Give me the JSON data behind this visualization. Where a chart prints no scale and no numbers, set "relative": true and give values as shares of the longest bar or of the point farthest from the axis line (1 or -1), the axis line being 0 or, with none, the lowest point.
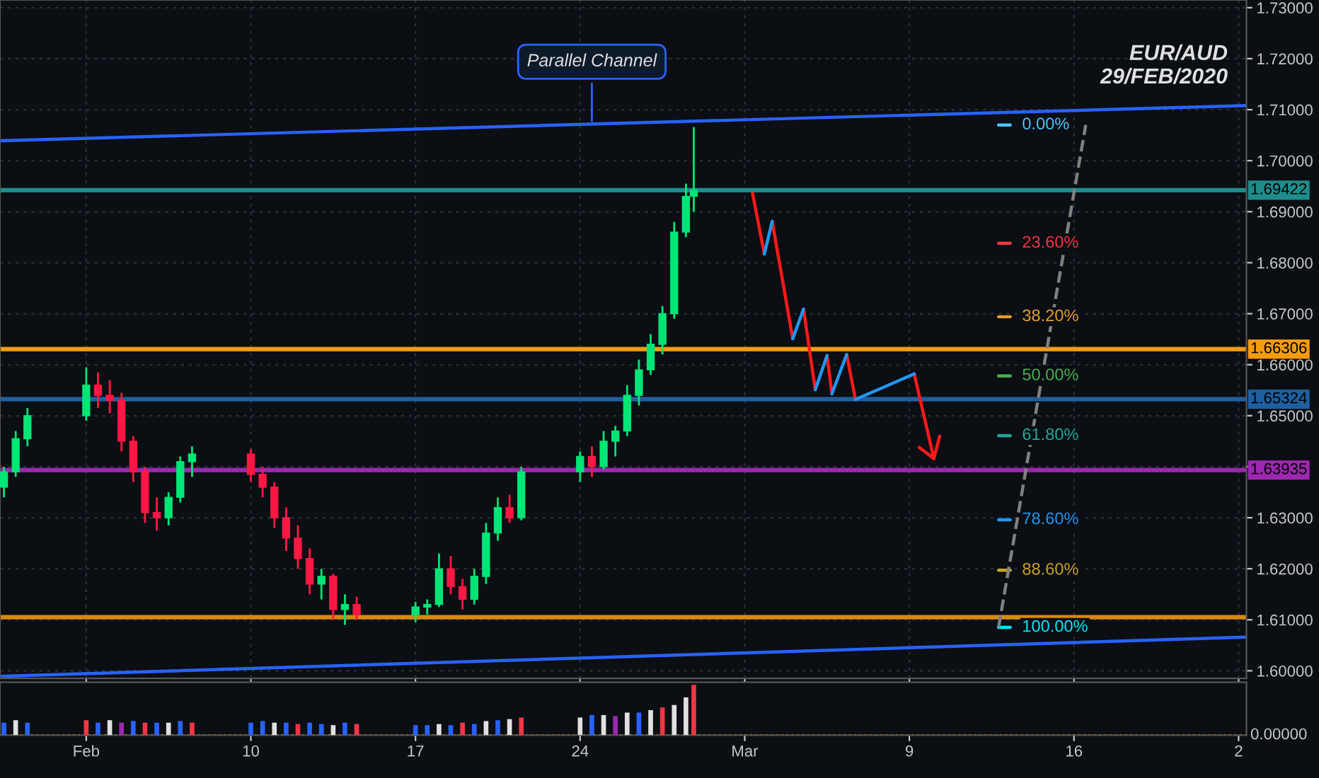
{
  "chart_data": [
    {
      "type": "candlestick",
      "title": "EUR/AUD",
      "subtitle": "29/FEB/2020",
      "x": [
        "2020-01-30T12:00",
        "2020-01-31T00:00",
        "2020-01-31T12:00",
        "2020-02-03T00:00",
        "2020-02-03T12:00",
        "2020-02-04T00:00",
        "2020-02-04T12:00",
        "2020-02-05T00:00",
        "2020-02-05T12:00",
        "2020-02-06T00:00",
        "2020-02-06T12:00",
        "2020-02-07T00:00",
        "2020-02-07T12:00",
        "2020-02-10T00:00",
        "2020-02-10T12:00",
        "2020-02-11T00:00",
        "2020-02-11T12:00",
        "2020-02-12T00:00",
        "2020-02-12T12:00",
        "2020-02-13T00:00",
        "2020-02-13T12:00",
        "2020-02-14T00:00",
        "2020-02-14T12:00",
        "2020-02-17T00:00",
        "2020-02-17T12:00",
        "2020-02-18T00:00",
        "2020-02-18T12:00",
        "2020-02-19T00:00",
        "2020-02-19T12:00",
        "2020-02-20T00:00",
        "2020-02-20T12:00",
        "2020-02-21T00:00",
        "2020-02-21T12:00",
        "2020-02-24T00:00",
        "2020-02-24T12:00",
        "2020-02-25T00:00",
        "2020-02-25T12:00",
        "2020-02-26T00:00",
        "2020-02-26T12:00",
        "2020-02-27T00:00",
        "2020-02-27T12:00",
        "2020-02-28T00:00",
        "2020-02-28T12:00",
        "2020-02-28T20:00"
      ],
      "ohlc": [
        [
          1.636,
          1.64,
          1.634,
          1.639
        ],
        [
          1.639,
          1.647,
          1.638,
          1.6455
        ],
        [
          1.6455,
          1.6515,
          1.644,
          1.65
        ],
        [
          1.65,
          1.6595,
          1.649,
          1.656
        ],
        [
          1.656,
          1.6585,
          1.6515,
          1.654
        ],
        [
          1.654,
          1.657,
          1.6505,
          1.653
        ],
        [
          1.653,
          1.6545,
          1.643,
          1.645
        ],
        [
          1.645,
          1.646,
          1.637,
          1.639
        ],
        [
          1.639,
          1.64,
          1.629,
          1.631
        ],
        [
          1.631,
          1.634,
          1.6275,
          1.63
        ],
        [
          1.63,
          1.635,
          1.6285,
          1.634
        ],
        [
          1.634,
          1.642,
          1.633,
          1.641
        ],
        [
          1.641,
          1.644,
          1.638,
          1.6425
        ],
        [
          1.6425,
          1.6435,
          1.637,
          1.6385
        ],
        [
          1.6385,
          1.64,
          1.634,
          1.636
        ],
        [
          1.636,
          1.637,
          1.628,
          1.63
        ],
        [
          1.63,
          1.632,
          1.6235,
          1.626
        ],
        [
          1.626,
          1.6285,
          1.62,
          1.622
        ],
        [
          1.622,
          1.624,
          1.615,
          1.617
        ],
        [
          1.617,
          1.62,
          1.614,
          1.6185
        ],
        [
          1.6185,
          1.619,
          1.61,
          1.612
        ],
        [
          1.612,
          1.615,
          1.609,
          1.613
        ],
        [
          1.613,
          1.6145,
          1.61,
          1.611
        ],
        [
          1.611,
          1.6135,
          1.6095,
          1.6125
        ],
        [
          1.6125,
          1.614,
          1.611,
          1.613
        ],
        [
          1.613,
          1.623,
          1.6125,
          1.62
        ],
        [
          1.62,
          1.6225,
          1.615,
          1.6165
        ],
        [
          1.6165,
          1.618,
          1.612,
          1.614
        ],
        [
          1.614,
          1.62,
          1.613,
          1.6185
        ],
        [
          1.6185,
          1.629,
          1.617,
          1.627
        ],
        [
          1.627,
          1.634,
          1.6255,
          1.632
        ],
        [
          1.632,
          1.6345,
          1.629,
          1.63
        ],
        [
          1.63,
          1.64,
          1.6295,
          1.639
        ],
        [
          1.639,
          1.643,
          1.637,
          1.642
        ],
        [
          1.642,
          1.644,
          1.638,
          1.64
        ],
        [
          1.64,
          1.647,
          1.6395,
          1.645
        ],
        [
          1.645,
          1.648,
          1.642,
          1.647
        ],
        [
          1.647,
          1.656,
          1.646,
          1.654
        ],
        [
          1.654,
          1.661,
          1.652,
          1.659
        ],
        [
          1.659,
          1.666,
          1.658,
          1.664
        ],
        [
          1.664,
          1.6715,
          1.662,
          1.67
        ],
        [
          1.67,
          1.688,
          1.669,
          1.686
        ],
        [
          1.686,
          1.6955,
          1.685,
          1.693
        ],
        [
          1.693,
          1.7066,
          1.69,
          1.6942
        ]
      ],
      "colors": [
        "#00e676",
        "#00e676",
        "#00e676",
        "#00e676",
        "#ff1744",
        "#ff1744",
        "#ff1744",
        "#ff1744",
        "#ff1744",
        "#ff1744",
        "#00e676",
        "#00e676",
        "#00e676",
        "#ff1744",
        "#ff1744",
        "#ff1744",
        "#ff1744",
        "#ff1744",
        "#ff1744",
        "#00e676",
        "#ff1744",
        "#00e676",
        "#ff1744",
        "#00e676",
        "#00e676",
        "#00e676",
        "#ff1744",
        "#ff1744",
        "#00e676",
        "#00e676",
        "#00e676",
        "#ff1744",
        "#00e676",
        "#00e676",
        "#ff1744",
        "#00e676",
        "#00e676",
        "#00e676",
        "#00e676",
        "#00e676",
        "#00e676",
        "#00e676",
        "#00e676",
        "#00e676"
      ],
      "series": [
        {
          "type": "line",
          "color": "#2962ff",
          "x": [
            "2020-01-30T08:00",
            "2020-03-23T08:00"
          ],
          "values": [
            1.7039,
            1.7108
          ]
        },
        {
          "type": "line",
          "color": "#2962ff",
          "x": [
            "2020-01-30T08:00",
            "2020-03-23T08:00"
          ],
          "values": [
            1.5989,
            1.6066
          ]
        },
        {
          "type": "line",
          "name": "0.00%",
          "color": "#4fc3f7",
          "x": [
            "2020-03-12T19:00",
            "2020-03-13T07:00"
          ],
          "values": [
            1.707,
            1.707
          ]
        },
        {
          "type": "line",
          "name": "23.60%",
          "color": "#f23645",
          "x": [
            "2020-03-12T19:00",
            "2020-03-13T07:00"
          ],
          "values": [
            1.6838,
            1.6838
          ]
        },
        {
          "type": "line",
          "name": "38.20%",
          "color": "#e0a030",
          "x": [
            "2020-03-12T19:00",
            "2020-03-13T07:00"
          ],
          "values": [
            1.6694,
            1.6694
          ]
        },
        {
          "type": "line",
          "name": "50.00%",
          "color": "#4caf50",
          "x": [
            "2020-03-12T19:00",
            "2020-03-13T07:00"
          ],
          "values": [
            1.6578,
            1.6578
          ]
        },
        {
          "type": "line",
          "name": "61.80%",
          "color": "#26a69a",
          "x": [
            "2020-03-12T19:00",
            "2020-03-13T07:00"
          ],
          "values": [
            1.6461,
            1.6461
          ]
        },
        {
          "type": "line",
          "name": "78.60%",
          "color": "#2196f3",
          "x": [
            "2020-03-12T19:00",
            "2020-03-13T07:00"
          ],
          "values": [
            1.6296,
            1.6296
          ]
        },
        {
          "type": "line",
          "name": "88.60%",
          "color": "#c9a227",
          "x": [
            "2020-03-12T19:00",
            "2020-03-13T07:00"
          ],
          "values": [
            1.6197,
            1.6197
          ]
        },
        {
          "type": "line",
          "name": "100.00%",
          "color": "#00e5ff",
          "x": [
            "2020-03-12T19:00",
            "2020-03-13T07:00"
          ],
          "values": [
            1.6085,
            1.6085
          ]
        },
        {
          "type": "line",
          "color": "#808080",
          "line_style": "dashed",
          "x": [
            "2020-03-12T19:00",
            "2020-03-16T12:00"
          ],
          "values": [
            1.6085,
            1.707
          ]
        },
        {
          "type": "line",
          "color": "#ff1a1a",
          "x": [
            "2020-03-02T08:00",
            "2020-03-02T20:00",
            "2020-03-02T23:00",
            "2020-03-03T04:00",
            "2020-03-04T01:00",
            "2020-03-04T05:00",
            "2020-03-04T12:00",
            "2020-03-05T00:00",
            "2020-03-05T05:00",
            "2020-03-05T12:00",
            "2020-03-05T17:00",
            "2020-03-06T00:00",
            "2020-03-06T08:00",
            "2020-03-06T17:00",
            "2020-03-06T22:00",
            "2020-03-09T05:00",
            "2020-03-10T01:00"
          ],
          "values": [
            1.6936,
            1.6817,
            null,
            1.6881,
            1.6651,
            null,
            1.6709,
            1.6551,
            null,
            1.6618,
            1.6543,
            null,
            1.662,
            1.6532,
            null,
            1.6582,
            1.6416
          ]
        },
        {
          "type": "line",
          "color": "#2196f3",
          "x": [
            "2020-03-02T20:00",
            "2020-03-03T04:00",
            "2020-03-03T12:00",
            "2020-03-04T01:00",
            "2020-03-04T12:00",
            "2020-03-04T19:00",
            "2020-03-05T00:00",
            "2020-03-05T12:00",
            "2020-03-05T14:00",
            "2020-03-05T17:00",
            "2020-03-06T08:00",
            "2020-03-06T12:00",
            "2020-03-06T17:00",
            "2020-03-09T05:00"
          ],
          "values": [
            1.6817,
            1.6881,
            null,
            1.6651,
            1.6709,
            null,
            1.6551,
            1.6618,
            null,
            1.6543,
            1.662,
            null,
            1.6532,
            1.6582
          ]
        },
        {
          "type": "line",
          "color": "#ff1a1a",
          "x": [
            "2020-03-09T10:00",
            "2020-03-10T01:00",
            "2020-03-10T07:00"
          ],
          "values": [
            1.6438,
            1.6416,
            1.646
          ]
        }
      ],
      "ref_lines": [
        {
          "axis": "y",
          "value": 1.69422,
          "label": "1.69422",
          "color": "#1e8c8c"
        },
        {
          "axis": "y",
          "value": 1.66306,
          "label": "1.66306",
          "color": "#f39c12"
        },
        {
          "axis": "y",
          "value": 1.65324,
          "label": "1.65324",
          "color": "#1e5fa0"
        },
        {
          "axis": "y",
          "value": 1.63935,
          "label": "1.63935",
          "color": "#9c27b0"
        },
        {
          "axis": "y",
          "value": 1.6105,
          "color": "#d68910"
        }
      ],
      "annotations": [
        {
          "text": "Parallel Channel",
          "x": "2020-02-24T12:00",
          "y": 1.707
        }
      ],
      "xlim": [
        "2020-01-30T08:00",
        "2020-03-23T08:00"
      ],
      "ylim": [
        1.5985,
        1.7315
      ],
      "xticks": [
        {
          "value": "2020-02-03",
          "label": null
        },
        {
          "value": "2020-02-10",
          "label": null
        },
        {
          "value": "2020-02-17",
          "label": null
        },
        {
          "value": "2020-02-24",
          "label": null
        },
        {
          "value": "2020-03-02",
          "label": null
        },
        {
          "value": "2020-03-09",
          "label": null
        },
        {
          "value": "2020-03-16",
          "label": null
        },
        {
          "value": "2020-03-23",
          "label": null
        }
      ],
      "yticks": [
        {
          "value": 1.6,
          "label": "1.60000"
        },
        {
          "value": 1.61,
          "label": "1.61000"
        },
        {
          "value": 1.62,
          "label": "1.62000"
        },
        {
          "value": 1.63,
          "label": "1.63000"
        },
        {
          "value": 1.64,
          "label": null
        },
        {
          "value": 1.65,
          "label": "1.65000"
        },
        {
          "value": 1.66,
          "label": "1.66000"
        },
        {
          "value": 1.67,
          "label": "1.67000"
        },
        {
          "value": 1.68,
          "label": "1.68000"
        },
        {
          "value": 1.69,
          "label": "1.69000"
        },
        {
          "value": 1.7,
          "label": "1.70000"
        },
        {
          "value": 1.71,
          "label": "1.71000"
        },
        {
          "value": 1.72,
          "label": "1.72000"
        },
        {
          "value": 1.73,
          "label": "1.73000"
        }
      ],
      "grid": true,
      "tick_labels": "y"
    },
    {
      "type": "bar",
      "relative": true,
      "x": [
        "2020-01-30T12:00",
        "2020-01-31T00:00",
        "2020-01-31T12:00",
        "2020-02-03T00:00",
        "2020-02-03T12:00",
        "2020-02-04T00:00",
        "2020-02-04T12:00",
        "2020-02-05T00:00",
        "2020-02-05T12:00",
        "2020-02-06T00:00",
        "2020-02-06T12:00",
        "2020-02-07T00:00",
        "2020-02-07T12:00",
        "2020-02-10T00:00",
        "2020-02-10T12:00",
        "2020-02-11T00:00",
        "2020-02-11T12:00",
        "2020-02-12T00:00",
        "2020-02-12T12:00",
        "2020-02-13T00:00",
        "2020-02-13T12:00",
        "2020-02-14T00:00",
        "2020-02-14T12:00",
        "2020-02-17T00:00",
        "2020-02-17T12:00",
        "2020-02-18T00:00",
        "2020-02-18T12:00",
        "2020-02-19T00:00",
        "2020-02-19T12:00",
        "2020-02-20T00:00",
        "2020-02-20T12:00",
        "2020-02-21T00:00",
        "2020-02-21T12:00",
        "2020-02-24T00:00",
        "2020-02-24T12:00",
        "2020-02-25T00:00",
        "2020-02-25T12:00",
        "2020-02-26T00:00",
        "2020-02-26T12:00",
        "2020-02-27T00:00",
        "2020-02-27T12:00",
        "2020-02-28T00:00",
        "2020-02-28T12:00",
        "2020-02-28T20:00"
      ],
      "values": [
        0.25,
        0.3,
        0.25,
        0.3,
        0.25,
        0.3,
        0.25,
        0.28,
        0.25,
        0.25,
        0.25,
        0.28,
        0.25,
        0.25,
        0.28,
        0.25,
        0.25,
        0.22,
        0.25,
        0.22,
        0.2,
        0.25,
        0.22,
        0.2,
        0.2,
        0.22,
        0.2,
        0.25,
        0.22,
        0.28,
        0.3,
        0.32,
        0.35,
        0.35,
        0.4,
        0.4,
        0.38,
        0.45,
        0.45,
        0.5,
        0.55,
        0.6,
        0.75,
        1.0
      ],
      "colors": [
        "#2962ff",
        "#e0e0e0",
        "#2962ff",
        "#f23645",
        "#2962ff",
        "#e0e0e0",
        "#9c27b0",
        "#2962ff",
        "#f23645",
        "#2962ff",
        "#e0e0e0",
        "#2962ff",
        "#f23645",
        "#2962ff",
        "#2962ff",
        "#e0e0e0",
        "#2962ff",
        "#f23645",
        "#2962ff",
        "#2962ff",
        "#e0e0e0",
        "#2962ff",
        "#f23645",
        "#2962ff",
        "#2962ff",
        "#e0e0e0",
        "#2962ff",
        "#f23645",
        "#2962ff",
        "#e0e0e0",
        "#2962ff",
        "#e0e0e0",
        "#f23645",
        "#e0e0e0",
        "#2962ff",
        "#e0e0e0",
        "#9c27b0",
        "#e0e0e0",
        "#2962ff",
        "#e0e0e0",
        "#f23645",
        "#e0e0e0",
        "#e0e0e0",
        "#f23645"
      ],
      "ref_lines": [
        {
          "axis": "y",
          "value": 0,
          "label": "0.00000",
          "color": "#e0a000",
          "line_style": "dotted"
        }
      ],
      "xlim": [
        "2020-01-30T08:00",
        "2020-03-23T08:00"
      ],
      "xticks": [
        {
          "value": "2020-02-03",
          "label": "Feb"
        },
        {
          "value": "2020-02-10",
          "label": "10"
        },
        {
          "value": "2020-02-17",
          "label": "17"
        },
        {
          "value": "2020-02-24",
          "label": "24"
        },
        {
          "value": "2020-03-02",
          "label": "Mar"
        },
        {
          "value": "2020-03-09",
          "label": "9"
        },
        {
          "value": "2020-03-16",
          "label": "16"
        },
        {
          "value": "2020-03-23",
          "label": "2"
        }
      ],
      "grid": false,
      "tick_labels": "x"
    }
  ]
}
